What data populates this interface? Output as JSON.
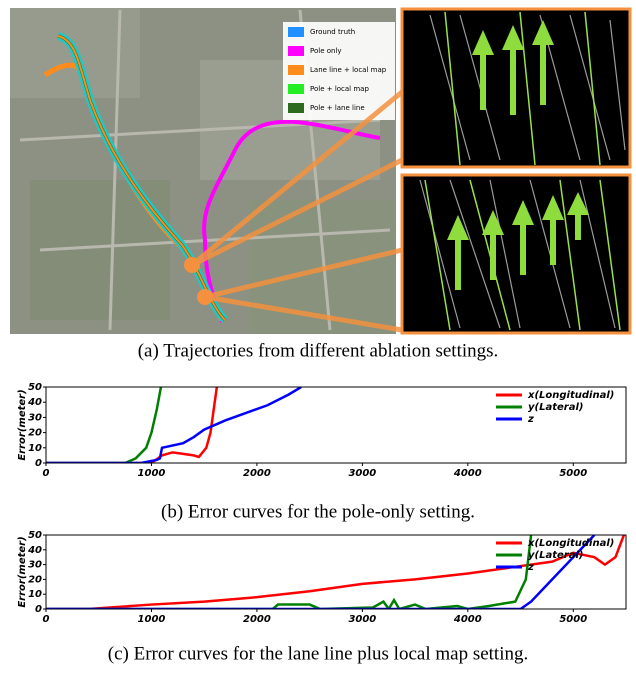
{
  "map_panel": {
    "legend": [
      {
        "name": "Ground truth",
        "color": "#1e90ff"
      },
      {
        "name": "Pole only",
        "color": "#ff00ff"
      },
      {
        "name": "Lane line + local map",
        "color": "#ff8c1a"
      },
      {
        "name": "Pole + local map",
        "color": "#22ee22"
      },
      {
        "name": "Pole + lane line",
        "color": "#2e6b1e"
      }
    ]
  },
  "captions": [
    "(a) Trajectories from different ablation settings.",
    "(b) Error curves for the pole-only setting.",
    "(c) Error curves for the lane line plus local map setting."
  ],
  "chart_data": [
    {
      "type": "line",
      "y_label": "Error(meter)",
      "xlim": [
        0,
        5500
      ],
      "ylim": [
        0,
        50
      ],
      "xticks": [
        0,
        1000,
        2000,
        3000,
        4000,
        5000
      ],
      "yticks": [
        0,
        10,
        20,
        30,
        40,
        50
      ],
      "legend": "upper right",
      "series": [
        {
          "name": "x(Longitudinal)",
          "color": "#ff0000",
          "x": [
            0,
            1000,
            1100,
            1200,
            1300,
            1400,
            1450,
            1520,
            1560,
            1600,
            1620
          ],
          "values": [
            0,
            0,
            5,
            7,
            6,
            5,
            4,
            10,
            20,
            40,
            50
          ]
        },
        {
          "name": "y(Lateral)",
          "color": "#008000",
          "x": [
            0,
            750,
            850,
            950,
            1000,
            1050,
            1090
          ],
          "values": [
            0,
            0,
            3,
            10,
            20,
            35,
            50
          ]
        },
        {
          "name": "z",
          "color": "#0000ff",
          "x": [
            0,
            900,
            1050,
            1080,
            1100,
            1300,
            1400,
            1500,
            1700,
            1900,
            2100,
            2300,
            2420
          ],
          "values": [
            0,
            0,
            2,
            3,
            10,
            13,
            17,
            22,
            28,
            33,
            38,
            45,
            50
          ]
        }
      ]
    },
    {
      "type": "line",
      "y_label": "Error(meter)",
      "xlim": [
        0,
        5500
      ],
      "ylim": [
        0,
        50
      ],
      "xticks": [
        0,
        1000,
        2000,
        3000,
        4000,
        5000
      ],
      "yticks": [
        0,
        10,
        20,
        30,
        40,
        50
      ],
      "legend": "upper right",
      "series": [
        {
          "name": "x(Longitudinal)",
          "color": "#ff0000",
          "x": [
            0,
            400,
            1000,
            1500,
            2000,
            2500,
            3000,
            3500,
            4000,
            4400,
            4800,
            5000,
            5200,
            5300,
            5400,
            5480
          ],
          "values": [
            0,
            0,
            3,
            5,
            8,
            12,
            17,
            20,
            24,
            28,
            32,
            38,
            35,
            30,
            35,
            50
          ]
        },
        {
          "name": "y(Lateral)",
          "color": "#008000",
          "x": [
            0,
            2150,
            2200,
            2500,
            2600,
            3100,
            3200,
            3250,
            3300,
            3350,
            3500,
            3600,
            3900,
            4000,
            4200,
            4450,
            4550,
            4600
          ],
          "values": [
            0,
            0,
            3,
            3,
            0,
            1,
            5,
            0,
            6,
            0,
            3,
            0,
            2,
            0,
            2,
            5,
            20,
            50
          ]
        },
        {
          "name": "z",
          "color": "#0000ff",
          "x": [
            0,
            4500,
            4600,
            4800,
            5000,
            5200
          ],
          "values": [
            0,
            0,
            5,
            20,
            35,
            50
          ]
        }
      ]
    }
  ]
}
